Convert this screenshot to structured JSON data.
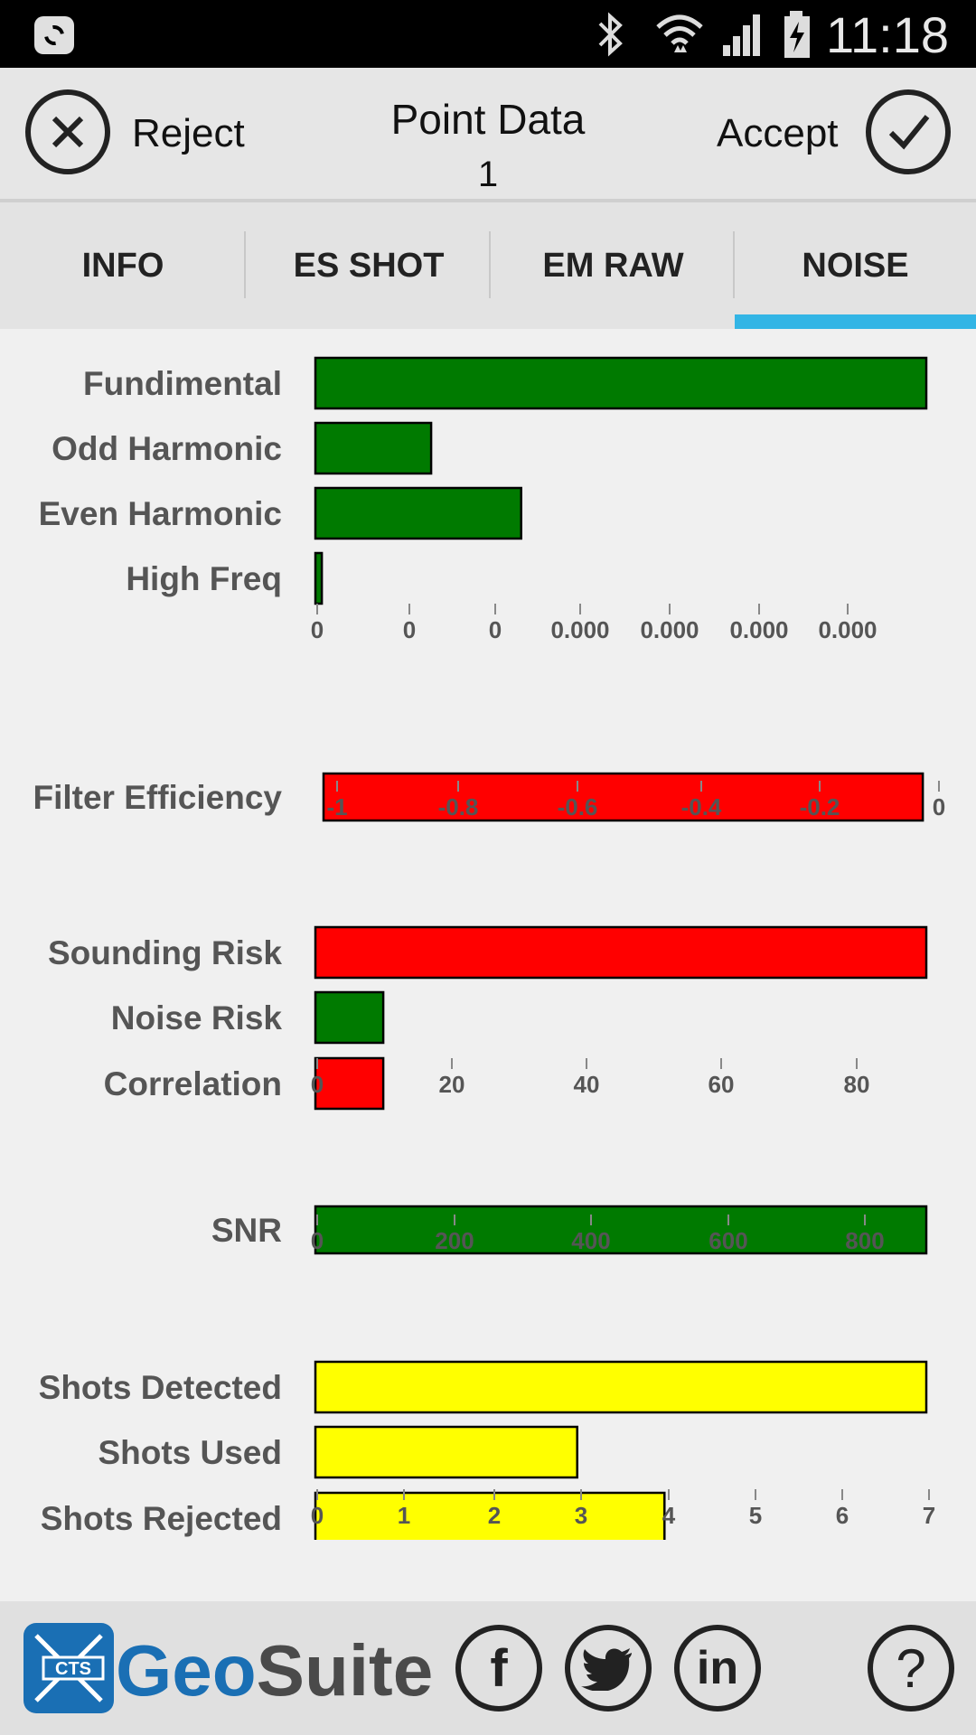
{
  "status_bar": {
    "time": "11:18",
    "icons": [
      "app-icon",
      "bluetooth-icon",
      "wifi-icon",
      "signal-icon",
      "battery-charging-icon"
    ]
  },
  "action_bar": {
    "reject_label": "Reject",
    "accept_label": "Accept",
    "title": "Point Data",
    "subtitle": "1"
  },
  "tabs": [
    {
      "label": "INFO",
      "selected": false
    },
    {
      "label": "ES SHOT",
      "selected": false
    },
    {
      "label": "EM RAW",
      "selected": false
    },
    {
      "label": "NOISE",
      "selected": true
    }
  ],
  "colors": {
    "green": "#007a00",
    "red": "#ff0000",
    "yellow": "#ffff00",
    "tab_indicator": "#33b5e5",
    "brand_blue": "#1a6fb4"
  },
  "chart_data": [
    {
      "type": "bar",
      "orientation": "horizontal",
      "categories": [
        "Fundimental",
        "Odd Harmonic",
        "Even Harmonic",
        "High Freq"
      ],
      "values": [
        0.95,
        0.18,
        0.32,
        0.01
      ],
      "colors": [
        "#007a00",
        "#007a00",
        "#007a00",
        "#007a00"
      ],
      "tick_labels": [
        "0",
        "0",
        "0",
        "0.000",
        "0.000",
        "0.000",
        "0.000"
      ]
    },
    {
      "type": "bar",
      "orientation": "horizontal",
      "categories": [
        "Filter Efficiency"
      ],
      "values": [
        -1.03
      ],
      "colors": [
        "#ff0000"
      ],
      "xlim": [
        -1.05,
        0
      ],
      "tick_labels": [
        "-1",
        "-0.8",
        "-0.6",
        "-0.4",
        "-0.2",
        "0"
      ]
    },
    {
      "type": "bar",
      "orientation": "horizontal",
      "categories": [
        "Sounding Risk",
        "Noise Risk",
        "Correlation"
      ],
      "values": [
        90,
        10,
        10
      ],
      "colors": [
        "#ff0000",
        "#007a00",
        "#ff0000"
      ],
      "xlim": [
        0,
        90
      ],
      "tick_labels": [
        "0",
        "20",
        "40",
        "60",
        "80"
      ]
    },
    {
      "type": "bar",
      "orientation": "horizontal",
      "categories": [
        "SNR"
      ],
      "values": [
        890
      ],
      "colors": [
        "#007a00"
      ],
      "xlim": [
        0,
        890
      ],
      "tick_labels": [
        "0",
        "200",
        "400",
        "600",
        "800"
      ]
    },
    {
      "type": "bar",
      "orientation": "horizontal",
      "categories": [
        "Shots Detected",
        "Shots Used",
        "Shots Rejected"
      ],
      "values": [
        7,
        3,
        4
      ],
      "colors": [
        "#ffff00",
        "#ffff00",
        "#ffff00"
      ],
      "xlim": [
        0,
        7
      ],
      "tick_labels": [
        "0",
        "1",
        "2",
        "3",
        "4",
        "5",
        "6",
        "7"
      ]
    }
  ],
  "footer": {
    "brand_badge": "CTS",
    "brand_geo": "Geo",
    "brand_suite": "Suite",
    "facebook_label": "f",
    "linkedin_label": "in",
    "help_label": "?"
  }
}
